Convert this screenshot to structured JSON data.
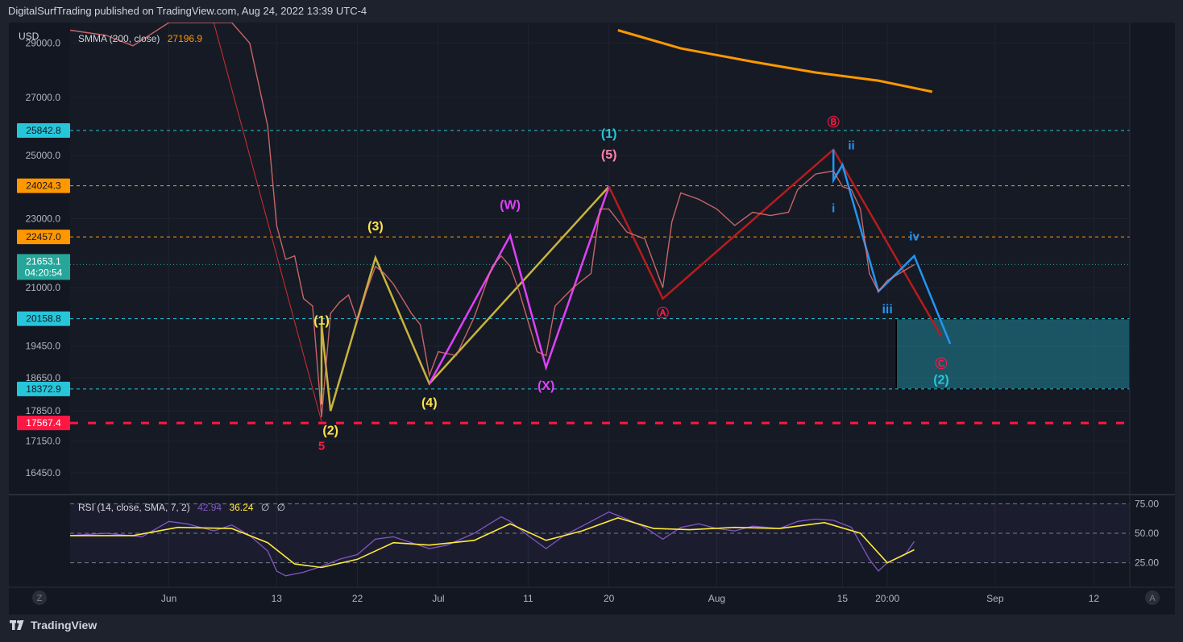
{
  "header": {
    "published": "DigitalSurfTrading published on TradingView.com, Aug 24, 2022 13:39 UTC-4"
  },
  "footer": {
    "brand": "TradingView",
    "brand_icon": "tradingview-logo-icon"
  },
  "chart_data": {
    "type": "line",
    "currency": "USD",
    "y_scale": "log",
    "ylim": [
      16000,
      29800
    ],
    "price_ticks": [
      29000.0,
      27000.0,
      25000.0,
      23000.0,
      21000.0,
      19450.0,
      18650.0,
      17850.0,
      17150.0,
      16450.0
    ],
    "time_ticks": [
      {
        "label": "Jun",
        "date": "2022-06-01"
      },
      {
        "label": "13",
        "date": "2022-06-13"
      },
      {
        "label": "22",
        "date": "2022-06-22"
      },
      {
        "label": "Jul",
        "date": "2022-07-01"
      },
      {
        "label": "11",
        "date": "2022-07-11"
      },
      {
        "label": "20",
        "date": "2022-07-20"
      },
      {
        "label": "Aug",
        "date": "2022-08-01"
      },
      {
        "label": "15",
        "date": "2022-08-15"
      },
      {
        "label": "20:00",
        "date": "2022-08-20"
      },
      {
        "label": "Sep",
        "date": "2022-09-01"
      },
      {
        "label": "12",
        "date": "2022-09-12"
      }
    ],
    "xlim": [
      "2022-05-21",
      "2022-09-16"
    ],
    "price_line": [
      [
        "2022-05-21",
        29500
      ],
      [
        "2022-05-25",
        29300
      ],
      [
        "2022-05-28",
        28900
      ],
      [
        "2022-06-01",
        29800
      ],
      [
        "2022-06-03",
        30100
      ],
      [
        "2022-06-06",
        29900
      ],
      [
        "2022-06-08",
        30000
      ],
      [
        "2022-06-10",
        29000
      ],
      [
        "2022-06-12",
        26000
      ],
      [
        "2022-06-13",
        22800
      ],
      [
        "2022-06-14",
        21800
      ],
      [
        "2022-06-15",
        21900
      ],
      [
        "2022-06-16",
        20700
      ],
      [
        "2022-06-17",
        20500
      ],
      [
        "2022-06-18",
        17700
      ],
      [
        "2022-06-19",
        20300
      ],
      [
        "2022-06-20",
        20600
      ],
      [
        "2022-06-21",
        20800
      ],
      [
        "2022-06-22",
        20100
      ],
      [
        "2022-06-23",
        20900
      ],
      [
        "2022-06-24",
        21600
      ],
      [
        "2022-06-25",
        21400
      ],
      [
        "2022-06-26",
        21100
      ],
      [
        "2022-06-27",
        20700
      ],
      [
        "2022-06-28",
        20300
      ],
      [
        "2022-06-29",
        20000
      ],
      [
        "2022-06-30",
        18700
      ],
      [
        "2022-07-01",
        19300
      ],
      [
        "2022-07-03",
        19200
      ],
      [
        "2022-07-05",
        20200
      ],
      [
        "2022-07-07",
        21600
      ],
      [
        "2022-07-08",
        21900
      ],
      [
        "2022-07-09",
        21600
      ],
      [
        "2022-07-10",
        20900
      ],
      [
        "2022-07-12",
        19300
      ],
      [
        "2022-07-13",
        19200
      ],
      [
        "2022-07-14",
        20500
      ],
      [
        "2022-07-16",
        21000
      ],
      [
        "2022-07-18",
        21400
      ],
      [
        "2022-07-19",
        23300
      ],
      [
        "2022-07-20",
        23300
      ],
      [
        "2022-07-22",
        22600
      ],
      [
        "2022-07-24",
        22400
      ],
      [
        "2022-07-26",
        21000
      ],
      [
        "2022-07-27",
        22900
      ],
      [
        "2022-07-28",
        23800
      ],
      [
        "2022-07-30",
        23600
      ],
      [
        "2022-08-01",
        23300
      ],
      [
        "2022-08-03",
        22800
      ],
      [
        "2022-08-05",
        23200
      ],
      [
        "2022-08-07",
        23100
      ],
      [
        "2022-08-09",
        23200
      ],
      [
        "2022-08-10",
        23900
      ],
      [
        "2022-08-12",
        24400
      ],
      [
        "2022-08-14",
        24500
      ],
      [
        "2022-08-15",
        24000
      ],
      [
        "2022-08-16",
        23900
      ],
      [
        "2022-08-17",
        23300
      ],
      [
        "2022-08-18",
        21400
      ],
      [
        "2022-08-19",
        20900
      ],
      [
        "2022-08-20",
        21200
      ],
      [
        "2022-08-22",
        21500
      ],
      [
        "2022-08-23",
        21650
      ]
    ],
    "sma": {
      "label": "SMMA (200, close)",
      "value": "27196.9",
      "color": "#ff9800",
      "points": [
        [
          "2022-07-21",
          29500
        ],
        [
          "2022-07-28",
          28800
        ],
        [
          "2022-08-05",
          28300
        ],
        [
          "2022-08-12",
          27900
        ],
        [
          "2022-08-19",
          27600
        ],
        [
          "2022-08-25",
          27200
        ]
      ]
    },
    "levels": [
      {
        "price": 25842.8,
        "label": "25842.8",
        "color": "#26c6da",
        "style": "dashed"
      },
      {
        "price": 24024.3,
        "label": "24024.3",
        "color": "#ff9800",
        "style": "dashed"
      },
      {
        "price": 22457.0,
        "label": "22457.0",
        "color": "#ff9800",
        "style": "dashed"
      },
      {
        "price": 20158.8,
        "label": "20158.8",
        "color": "#26c6da",
        "style": "dashed"
      },
      {
        "price": 18372.9,
        "label": "18372.9",
        "color": "#26c6da",
        "style": "dashed"
      },
      {
        "price": 17567.4,
        "label": "17567.4",
        "color": "#ff1744",
        "style": "thick-dashed"
      }
    ],
    "last_price": {
      "price": 21653.1,
      "label": "21653.1",
      "countdown": "04:20:54",
      "color": "#26a69a"
    },
    "target_zone": {
      "x_start": "2022-08-21",
      "x_end": "2022-09-16",
      "price_top": 20158.8,
      "price_bottom": 18372.9,
      "color": "#26c6da"
    },
    "waves": [
      {
        "name": "yellow-impulse",
        "color": "#c8b43c",
        "points": [
          [
            "2022-06-18",
            18000
          ],
          [
            "2022-06-18",
            20000
          ],
          [
            "2022-06-19",
            17850
          ],
          [
            "2022-06-24",
            21850
          ],
          [
            "2022-06-30",
            18500
          ],
          [
            "2022-07-20",
            24000
          ]
        ]
      },
      {
        "name": "magenta-wxy",
        "color": "#e040fb",
        "points": [
          [
            "2022-06-30",
            18500
          ],
          [
            "2022-07-09",
            22500
          ],
          [
            "2022-07-13",
            18900
          ],
          [
            "2022-07-20",
            24000
          ]
        ]
      },
      {
        "name": "dark-red-abc",
        "color": "#b71c1c",
        "points": [
          [
            "2022-07-20",
            24000
          ],
          [
            "2022-07-26",
            20700
          ],
          [
            "2022-08-14",
            25200
          ],
          [
            "2022-08-26",
            19700
          ]
        ]
      },
      {
        "name": "red-decline",
        "color": "#d32f2f",
        "points": [
          [
            "2022-06-06",
            29800
          ],
          [
            "2022-06-18",
            17600
          ]
        ]
      },
      {
        "name": "blue-subwaves",
        "color": "#2196f3",
        "points": [
          [
            "2022-08-14",
            25200
          ],
          [
            "2022-08-14",
            24200
          ],
          [
            "2022-08-15",
            24700
          ],
          [
            "2022-08-19",
            20900
          ],
          [
            "2022-08-23",
            21900
          ],
          [
            "2022-08-27",
            19500
          ]
        ]
      }
    ],
    "wave_labels": [
      {
        "text": "(1)",
        "date": "2022-06-18",
        "price": 20000,
        "color": "#ffe24d"
      },
      {
        "text": "(2)",
        "date": "2022-06-19",
        "price": 17300,
        "color": "#ffe24d"
      },
      {
        "text": "5",
        "date": "2022-06-18",
        "price": 16950,
        "color": "#ff1744"
      },
      {
        "text": "(3)",
        "date": "2022-06-24",
        "price": 22650,
        "color": "#ffe24d"
      },
      {
        "text": "(4)",
        "date": "2022-06-30",
        "price": 17950,
        "color": "#ffe24d"
      },
      {
        "text": "(W)",
        "date": "2022-07-09",
        "price": 23300,
        "color": "#e040fb"
      },
      {
        "text": "(X)",
        "date": "2022-07-13",
        "price": 18350,
        "color": "#e040fb"
      },
      {
        "text": "(1)",
        "date": "2022-07-20",
        "price": 25600,
        "color": "#26c6da"
      },
      {
        "text": "(5)",
        "date": "2022-07-20",
        "price": 24900,
        "color": "#ff80ab"
      },
      {
        "text": "Ⓐ",
        "date": "2022-07-26",
        "price": 20200,
        "color": "#ff1744"
      },
      {
        "text": "Ⓑ",
        "date": "2022-08-14",
        "price": 26000,
        "color": "#ff1744"
      },
      {
        "text": "Ⓒ",
        "date": "2022-08-26",
        "price": 18900,
        "color": "#ff1744"
      },
      {
        "text": "(2)",
        "date": "2022-08-26",
        "price": 18500,
        "color": "#26c6da"
      },
      {
        "text": "i",
        "date": "2022-08-14",
        "price": 23200,
        "color": "#2196f3"
      },
      {
        "text": "ii",
        "date": "2022-08-16",
        "price": 25200,
        "color": "#2196f3"
      },
      {
        "text": "iii",
        "date": "2022-08-20",
        "price": 20300,
        "color": "#2196f3"
      },
      {
        "text": "iv",
        "date": "2022-08-23",
        "price": 22350,
        "color": "#2196f3"
      }
    ],
    "rsi": {
      "label": "RSI (14, close, SMA, 7, 2)",
      "value": "42.94",
      "sma_value": "36.24",
      "extra_values": [
        "∅",
        "∅"
      ],
      "color": "#7e57c2",
      "sma_color": "#ffeb3b",
      "levels": [
        75.0,
        50.0,
        25.0
      ],
      "level_labels": [
        "75.00",
        "50.00",
        "25.00"
      ],
      "ylim": [
        5,
        80
      ],
      "values": [
        [
          "2022-05-21",
          48
        ],
        [
          "2022-05-25",
          50
        ],
        [
          "2022-05-29",
          47
        ],
        [
          "2022-06-01",
          60
        ],
        [
          "2022-06-03",
          58
        ],
        [
          "2022-06-06",
          52
        ],
        [
          "2022-06-08",
          57
        ],
        [
          "2022-06-10",
          48
        ],
        [
          "2022-06-12",
          35
        ],
        [
          "2022-06-13",
          18
        ],
        [
          "2022-06-14",
          14
        ],
        [
          "2022-06-16",
          17
        ],
        [
          "2022-06-18",
          22
        ],
        [
          "2022-06-20",
          28
        ],
        [
          "2022-06-22",
          32
        ],
        [
          "2022-06-24",
          45
        ],
        [
          "2022-06-26",
          47
        ],
        [
          "2022-06-28",
          42
        ],
        [
          "2022-06-30",
          37
        ],
        [
          "2022-07-02",
          40
        ],
        [
          "2022-07-05",
          50
        ],
        [
          "2022-07-08",
          64
        ],
        [
          "2022-07-09",
          60
        ],
        [
          "2022-07-11",
          48
        ],
        [
          "2022-07-13",
          37
        ],
        [
          "2022-07-15",
          48
        ],
        [
          "2022-07-18",
          60
        ],
        [
          "2022-07-20",
          68
        ],
        [
          "2022-07-22",
          62
        ],
        [
          "2022-07-24",
          55
        ],
        [
          "2022-07-26",
          45
        ],
        [
          "2022-07-28",
          55
        ],
        [
          "2022-07-30",
          58
        ],
        [
          "2022-08-01",
          54
        ],
        [
          "2022-08-03",
          52
        ],
        [
          "2022-08-05",
          56
        ],
        [
          "2022-08-08",
          54
        ],
        [
          "2022-08-10",
          60
        ],
        [
          "2022-08-12",
          62
        ],
        [
          "2022-08-14",
          61
        ],
        [
          "2022-08-16",
          55
        ],
        [
          "2022-08-18",
          28
        ],
        [
          "2022-08-19",
          18
        ],
        [
          "2022-08-20",
          25
        ],
        [
          "2022-08-22",
          32
        ],
        [
          "2022-08-23",
          43
        ]
      ],
      "sma_points": [
        [
          "2022-05-21",
          48
        ],
        [
          "2022-05-28",
          48
        ],
        [
          "2022-06-02",
          55
        ],
        [
          "2022-06-08",
          54
        ],
        [
          "2022-06-12",
          42
        ],
        [
          "2022-06-15",
          24
        ],
        [
          "2022-06-18",
          21
        ],
        [
          "2022-06-22",
          28
        ],
        [
          "2022-06-26",
          42
        ],
        [
          "2022-06-30",
          40
        ],
        [
          "2022-07-05",
          44
        ],
        [
          "2022-07-09",
          58
        ],
        [
          "2022-07-13",
          44
        ],
        [
          "2022-07-17",
          52
        ],
        [
          "2022-07-21",
          63
        ],
        [
          "2022-07-25",
          54
        ],
        [
          "2022-07-29",
          53
        ],
        [
          "2022-08-03",
          55
        ],
        [
          "2022-08-08",
          54
        ],
        [
          "2022-08-13",
          59
        ],
        [
          "2022-08-17",
          50
        ],
        [
          "2022-08-20",
          25
        ],
        [
          "2022-08-23",
          36
        ]
      ]
    },
    "axis_buttons": {
      "left": "Z",
      "right": "A"
    }
  }
}
